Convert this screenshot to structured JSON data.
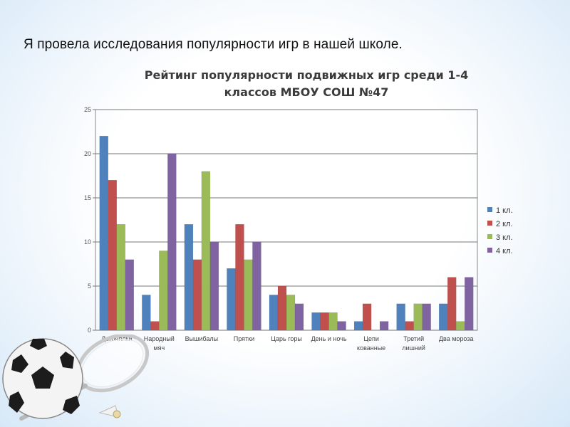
{
  "slide": {
    "intro_text": "Я провела исследования популярности игр в нашей школе."
  },
  "colors": {
    "series": [
      "#4f81bd",
      "#c0504d",
      "#9bbb59",
      "#8064a2"
    ]
  },
  "icons": [
    "soccer-ball-icon",
    "badminton-racket-icon",
    "shuttlecock-icon"
  ],
  "chart_data": {
    "type": "bar",
    "title_line1": "Рейтинг популярности подвижных игр среди 1-4",
    "title_line2": "классов МБОУ СОШ №47",
    "categories": [
      [
        "Догонялки"
      ],
      [
        "Народный",
        "мяч"
      ],
      [
        "Вышибалы"
      ],
      [
        "Прятки"
      ],
      [
        "Царь горы"
      ],
      [
        "День и ночь"
      ],
      [
        "Цепи",
        "кованные"
      ],
      [
        "Третий",
        "лишний"
      ],
      [
        "Два мороза"
      ]
    ],
    "series": [
      {
        "name": "1 кл.",
        "values": [
          22,
          4,
          12,
          7,
          4,
          2,
          1,
          3,
          3
        ]
      },
      {
        "name": "2 кл.",
        "values": [
          17,
          1,
          8,
          12,
          5,
          2,
          3,
          1,
          6
        ]
      },
      {
        "name": "3 кл.",
        "values": [
          12,
          9,
          18,
          8,
          4,
          2,
          0,
          3,
          1
        ]
      },
      {
        "name": "4 кл.",
        "values": [
          8,
          20,
          10,
          10,
          3,
          1,
          1,
          3,
          6
        ]
      }
    ],
    "ylim": [
      0,
      25
    ],
    "yticks": [
      0,
      5,
      10,
      15,
      20,
      25
    ],
    "grid": true,
    "legend": "right"
  }
}
